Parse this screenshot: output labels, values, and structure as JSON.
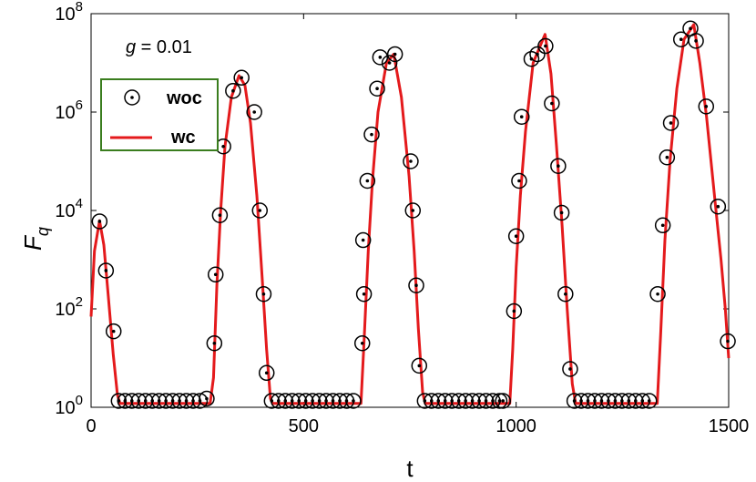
{
  "chart_data": {
    "type": "line",
    "xlabel": "t",
    "ylabel": "F_q",
    "ylabel_base": "F",
    "ylabel_sub": "q",
    "xlim": [
      0,
      1500
    ],
    "ylim": [
      1,
      100000000
    ],
    "yscale": "log",
    "xticks": [
      0,
      500,
      1000,
      1500
    ],
    "xtick_labels": [
      "0",
      "500",
      "1000",
      "1500"
    ],
    "yticks": [
      1,
      100,
      10000,
      1000000,
      100000000
    ],
    "ytick_labels": [
      {
        "base": "10",
        "exp": "0"
      },
      {
        "base": "10",
        "exp": "2"
      },
      {
        "base": "10",
        "exp": "4"
      },
      {
        "base": "10",
        "exp": "6"
      },
      {
        "base": "10",
        "exp": "8"
      }
    ],
    "grid": false,
    "annotation": {
      "var": "g",
      "rest": " = 0.01"
    },
    "legend": {
      "position": "upper-left",
      "border_color": "#3a7d1e"
    },
    "series": [
      {
        "name": "woc",
        "style": "circle-dot markers",
        "color": "#000000",
        "points": [
          [
            20,
            6000
          ],
          [
            35,
            600
          ],
          [
            53,
            35
          ],
          [
            65,
            1.35
          ],
          [
            80,
            1.35
          ],
          [
            96,
            1.35
          ],
          [
            112,
            1.35
          ],
          [
            128,
            1.35
          ],
          [
            144,
            1.35
          ],
          [
            160,
            1.35
          ],
          [
            176,
            1.35
          ],
          [
            192,
            1.35
          ],
          [
            208,
            1.35
          ],
          [
            224,
            1.35
          ],
          [
            240,
            1.35
          ],
          [
            256,
            1.35
          ],
          [
            272,
            1.5
          ],
          [
            290,
            20
          ],
          [
            293,
            500
          ],
          [
            303,
            8000
          ],
          [
            311,
            200000
          ],
          [
            334,
            2700000
          ],
          [
            354,
            5000000
          ],
          [
            384,
            1000000
          ],
          [
            397,
            10000
          ],
          [
            406,
            200
          ],
          [
            413,
            5
          ],
          [
            425,
            1.35
          ],
          [
            441,
            1.35
          ],
          [
            457,
            1.35
          ],
          [
            473,
            1.35
          ],
          [
            489,
            1.35
          ],
          [
            505,
            1.35
          ],
          [
            521,
            1.35
          ],
          [
            537,
            1.35
          ],
          [
            553,
            1.35
          ],
          [
            569,
            1.35
          ],
          [
            585,
            1.35
          ],
          [
            601,
            1.35
          ],
          [
            617,
            1.35
          ],
          [
            638,
            20
          ],
          [
            640,
            2500
          ],
          [
            642,
            200
          ],
          [
            650,
            40000
          ],
          [
            660,
            350000
          ],
          [
            673,
            3000000
          ],
          [
            680,
            13000000
          ],
          [
            702,
            10000000
          ],
          [
            715,
            15000000
          ],
          [
            752,
            100000
          ],
          [
            757,
            10000
          ],
          [
            765,
            300
          ],
          [
            772,
            7
          ],
          [
            785,
            1.35
          ],
          [
            801,
            1.35
          ],
          [
            817,
            1.35
          ],
          [
            833,
            1.35
          ],
          [
            849,
            1.35
          ],
          [
            865,
            1.35
          ],
          [
            881,
            1.35
          ],
          [
            897,
            1.35
          ],
          [
            913,
            1.35
          ],
          [
            929,
            1.35
          ],
          [
            945,
            1.35
          ],
          [
            961,
            1.35
          ],
          [
            969,
            1.35
          ],
          [
            995,
            90
          ],
          [
            1000,
            3000
          ],
          [
            1007,
            40000
          ],
          [
            1013,
            800000
          ],
          [
            1036,
            12000000
          ],
          [
            1050,
            15000000
          ],
          [
            1069,
            22000000
          ],
          [
            1084,
            1500000
          ],
          [
            1099,
            80000
          ],
          [
            1107,
            9000
          ],
          [
            1116,
            200
          ],
          [
            1127,
            6
          ],
          [
            1137,
            1.35
          ],
          [
            1153,
            1.35
          ],
          [
            1169,
            1.35
          ],
          [
            1185,
            1.35
          ],
          [
            1201,
            1.35
          ],
          [
            1217,
            1.35
          ],
          [
            1233,
            1.35
          ],
          [
            1249,
            1.35
          ],
          [
            1265,
            1.35
          ],
          [
            1281,
            1.35
          ],
          [
            1297,
            1.35
          ],
          [
            1313,
            1.35
          ],
          [
            1333,
            200
          ],
          [
            1345,
            5000
          ],
          [
            1355,
            120000
          ],
          [
            1364,
            600000
          ],
          [
            1388,
            30000000
          ],
          [
            1410,
            50000000
          ],
          [
            1423,
            28000000
          ],
          [
            1447,
            1300000
          ],
          [
            1475,
            12000
          ],
          [
            1498,
            22
          ]
        ]
      },
      {
        "name": "wc",
        "style": "line",
        "color": "#e41a1c",
        "points": [
          [
            0,
            70
          ],
          [
            8,
            1500
          ],
          [
            20,
            6200
          ],
          [
            30,
            2000
          ],
          [
            40,
            200
          ],
          [
            52,
            12
          ],
          [
            62,
            1.8
          ],
          [
            68,
            1.2
          ],
          [
            280,
            1.2
          ],
          [
            288,
            4
          ],
          [
            296,
            300
          ],
          [
            305,
            10000
          ],
          [
            315,
            200000
          ],
          [
            330,
            2000000
          ],
          [
            348,
            5500000
          ],
          [
            362,
            3500000
          ],
          [
            375,
            600000
          ],
          [
            390,
            20000
          ],
          [
            402,
            500
          ],
          [
            413,
            15
          ],
          [
            422,
            1.5
          ],
          [
            427,
            1.2
          ],
          [
            635,
            1.2
          ],
          [
            642,
            20
          ],
          [
            652,
            1500
          ],
          [
            662,
            40000
          ],
          [
            675,
            1000000
          ],
          [
            695,
            10000000
          ],
          [
            712,
            15000000
          ],
          [
            730,
            2000000
          ],
          [
            748,
            50000
          ],
          [
            760,
            1500
          ],
          [
            770,
            40
          ],
          [
            780,
            2
          ],
          [
            786,
            1.2
          ],
          [
            985,
            1.2
          ],
          [
            992,
            15
          ],
          [
            1000,
            700
          ],
          [
            1010,
            20000
          ],
          [
            1022,
            400000
          ],
          [
            1040,
            10000000
          ],
          [
            1068,
            38000000
          ],
          [
            1082,
            6000000
          ],
          [
            1095,
            200000
          ],
          [
            1108,
            5000
          ],
          [
            1120,
            100
          ],
          [
            1132,
            3
          ],
          [
            1140,
            1.2
          ],
          [
            1332,
            1.2
          ],
          [
            1340,
            30
          ],
          [
            1350,
            2500
          ],
          [
            1362,
            100000
          ],
          [
            1378,
            3000000
          ],
          [
            1395,
            30000000
          ],
          [
            1418,
            60000000
          ],
          [
            1432,
            10000000
          ],
          [
            1448,
            800000
          ],
          [
            1468,
            15000
          ],
          [
            1482,
            1000
          ],
          [
            1492,
            100
          ],
          [
            1500,
            10
          ]
        ]
      }
    ]
  }
}
